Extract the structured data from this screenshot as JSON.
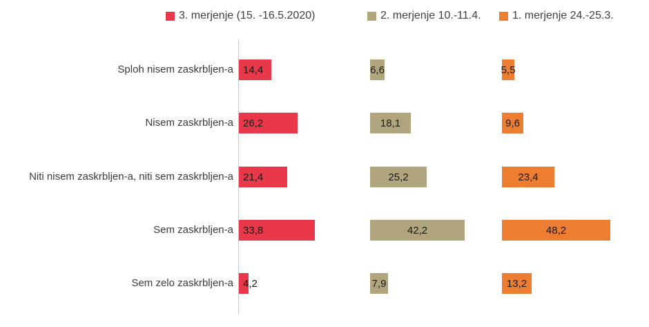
{
  "chart_data": {
    "type": "bar",
    "orientation": "horizontal",
    "title": "",
    "xlabel": "",
    "ylabel": "",
    "grid": false,
    "legend_position": "top",
    "value_format": "decimal-comma",
    "xlim": [
      0,
      60
    ],
    "axis_line_color": "#c9c9c9",
    "background_color": "#ffffff",
    "categories": [
      "Sploh nisem zaskrbljen-a",
      "Nisem zaskrbljen-a",
      "Niti nisem zaskrbljen-a, niti sem zaskrbljen-a",
      "Sem zaskrbljen-a",
      "Sem zelo zaskrbljen-a"
    ],
    "series": [
      {
        "name": "3. merjenje (15. -16.5.2020)",
        "color": "#e8384a",
        "values": [
          14.4,
          26.2,
          21.4,
          33.8,
          4.2
        ],
        "labels": [
          "14,4",
          "26,2",
          "21,4",
          "33,8",
          "4,2"
        ],
        "label_align": "inside-start"
      },
      {
        "name": "2. merjenje 10.-11.4.",
        "color": "#b0a57c",
        "values": [
          6.6,
          18.1,
          25.2,
          42.2,
          7.9
        ],
        "labels": [
          "6,6",
          "18,1",
          "25,2",
          "42,2",
          "7,9"
        ],
        "label_align": "center"
      },
      {
        "name": "1. merjenje 24.-25.3.",
        "color": "#ed7d31",
        "values": [
          5.5,
          9.6,
          23.4,
          48.2,
          13.2
        ],
        "labels": [
          "5,5",
          "9,6",
          "23,4",
          "48,2",
          "13,2"
        ],
        "label_align": "center"
      }
    ]
  }
}
